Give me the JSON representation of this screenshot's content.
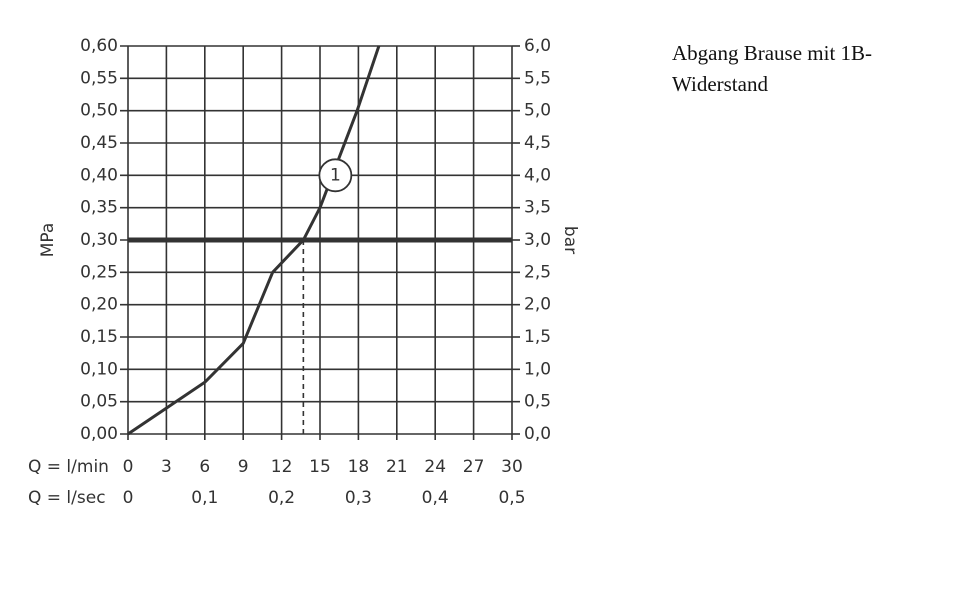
{
  "chart_data": {
    "type": "line",
    "x": [
      0,
      3,
      6,
      9,
      11.3,
      13.7,
      15,
      17.9,
      19.6
    ],
    "series": [
      {
        "color": "#333333",
        "values": [
          0,
          0.04,
          0.08,
          0.14,
          0.25,
          0.3,
          0.35,
          0.5,
          0.6
        ]
      }
    ],
    "xlim": [
      0,
      30
    ],
    "xticks": [
      0,
      3,
      6,
      9,
      12,
      15,
      18,
      21,
      24,
      27,
      30
    ],
    "x2lim": [
      0,
      0.5
    ],
    "x2ticks": [
      {
        "value": 0,
        "label": "0"
      },
      {
        "value": 0.1,
        "label": "0,1"
      },
      {
        "value": 0.2,
        "label": "0,2"
      },
      {
        "value": 0.3,
        "label": "0,3"
      },
      {
        "value": 0.4,
        "label": "0,4"
      },
      {
        "value": 0.5,
        "label": "0,5"
      }
    ],
    "ylim": [
      0,
      0.6
    ],
    "yticks": [
      {
        "value": 0,
        "label": "0,00"
      },
      {
        "value": 0.05,
        "label": "0,05"
      },
      {
        "value": 0.1,
        "label": "0,10"
      },
      {
        "value": 0.15,
        "label": "0,15"
      },
      {
        "value": 0.2,
        "label": "0,20"
      },
      {
        "value": 0.25,
        "label": "0,25"
      },
      {
        "value": 0.3,
        "label": "0,30"
      },
      {
        "value": 0.35,
        "label": "0,35"
      },
      {
        "value": 0.4,
        "label": "0,40"
      },
      {
        "value": 0.45,
        "label": "0,45"
      },
      {
        "value": 0.5,
        "label": "0,50"
      },
      {
        "value": 0.55,
        "label": "0,55"
      },
      {
        "value": 0.6,
        "label": "0,60"
      }
    ],
    "y2lim": [
      0,
      6
    ],
    "y2ticks": [
      {
        "value": 0,
        "label": "0,0"
      },
      {
        "value": 0.5,
        "label": "0,5"
      },
      {
        "value": 1,
        "label": "1,0"
      },
      {
        "value": 1.5,
        "label": "1,5"
      },
      {
        "value": 2,
        "label": "2,0"
      },
      {
        "value": 2.5,
        "label": "2,5"
      },
      {
        "value": 3,
        "label": "3,0"
      },
      {
        "value": 3.5,
        "label": "3,5"
      },
      {
        "value": 4,
        "label": "4,0"
      },
      {
        "value": 4.5,
        "label": "4,5"
      },
      {
        "value": 5,
        "label": "5,0"
      },
      {
        "value": 5.5,
        "label": "5,5"
      },
      {
        "value": 6,
        "label": "6,0"
      }
    ],
    "xlabel": "Q = l/min",
    "x2label": "Q = l/sec",
    "ylabel": "MPa",
    "y2label": "bar",
    "grid": true,
    "reference_y": 0.3,
    "reference_x": 13.7,
    "annotation": {
      "label": "1",
      "x": 16.2,
      "y": 0.4
    },
    "caption": [
      "Abgang Brause mit 1B-",
      "Widerstand"
    ]
  }
}
